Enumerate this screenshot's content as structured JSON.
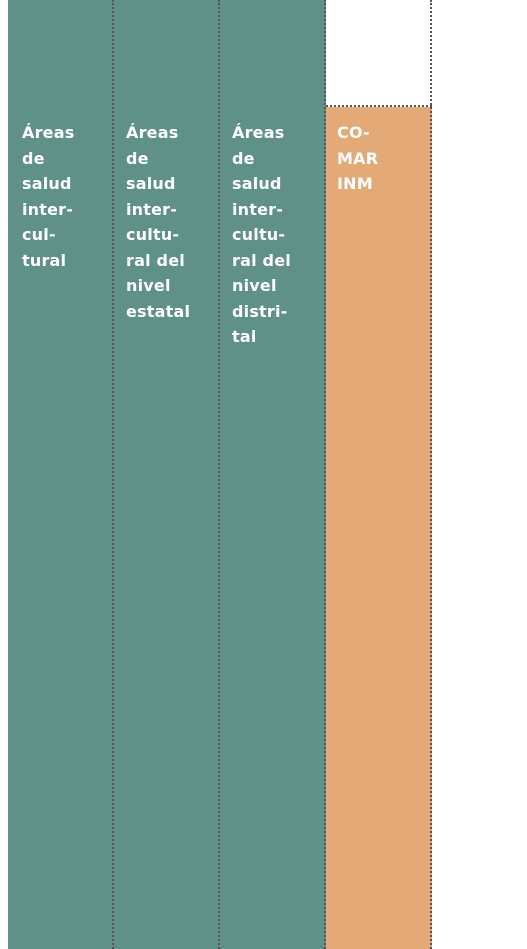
{
  "table": {
    "columns": [
      {
        "lines": [
          "Áreas",
          "de",
          "salud",
          "inter-",
          "cul-",
          "tural"
        ]
      },
      {
        "lines": [
          "Áreas",
          "de",
          "salud",
          "inter-",
          "cultu-",
          "ral del",
          "nivel",
          "estatal"
        ]
      },
      {
        "lines": [
          "Áreas",
          "de",
          "salud",
          "inter-",
          "cultu-",
          "ral del",
          "nivel",
          "distri-",
          "tal"
        ]
      },
      {
        "lines": [
          "CO-",
          "MAR",
          "INM"
        ]
      }
    ]
  }
}
